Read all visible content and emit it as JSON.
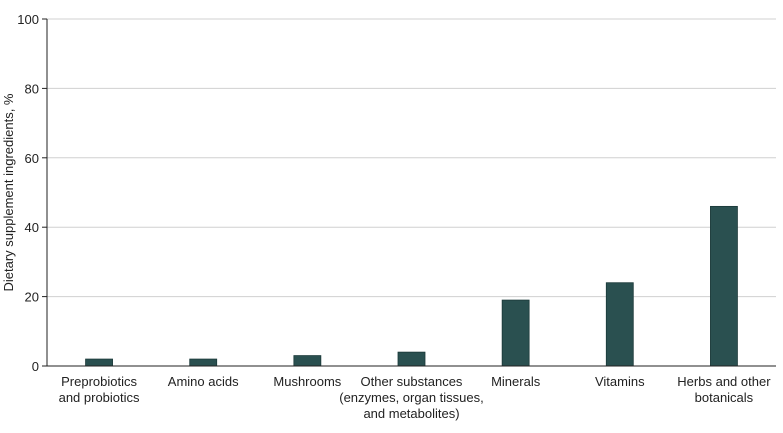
{
  "chart_data": {
    "type": "bar",
    "title": "",
    "xlabel": "",
    "ylabel": "Dietary supplement ingredients, %",
    "ylim": [
      0,
      100
    ],
    "yticks": [
      0,
      20,
      40,
      60,
      80,
      100
    ],
    "grid": true,
    "categories": [
      [
        "Preprobiotics",
        "and probiotics"
      ],
      [
        "Amino acids"
      ],
      [
        "Mushrooms"
      ],
      [
        "Other substances",
        "(enzymes, organ tissues,",
        "and metabolites)"
      ],
      [
        "Minerals"
      ],
      [
        "Vitamins"
      ],
      [
        "Herbs and other",
        "botanicals"
      ]
    ],
    "values": [
      2,
      2,
      3,
      4,
      19,
      24,
      46
    ],
    "bar_color": "#2a5050",
    "grid_color": "#d0d0d0"
  }
}
